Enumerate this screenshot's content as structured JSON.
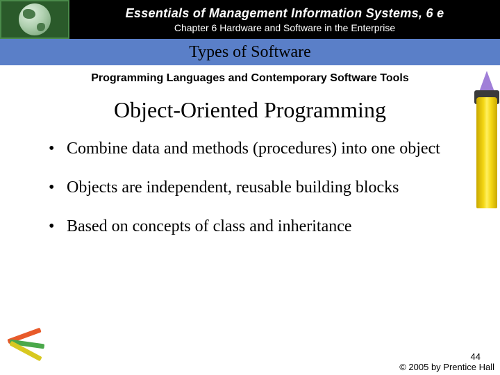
{
  "header": {
    "title": "Essentials of Management Information Systems, 6 e",
    "chapter": "Chapter 6 Hardware and Software in the Enterprise"
  },
  "subband": {
    "text": "Types of Software"
  },
  "section": {
    "label": "Programming Languages and Contemporary Software Tools"
  },
  "main": {
    "heading": "Object-Oriented Programming",
    "bullets": [
      "Combine data and methods (procedures) into one object",
      "Objects are independent, reusable building blocks",
      "Based on concepts of class and inheritance"
    ]
  },
  "footer": {
    "page": "44",
    "copyright": "© 2005 by Prentice Hall"
  },
  "colors": {
    "header_bg": "#000000",
    "subband_bg": "#5a7fc8",
    "globe_bg": "#2a5a2a",
    "crayon_body": "#f5d815",
    "crayon_tip": "#a07fd8"
  }
}
